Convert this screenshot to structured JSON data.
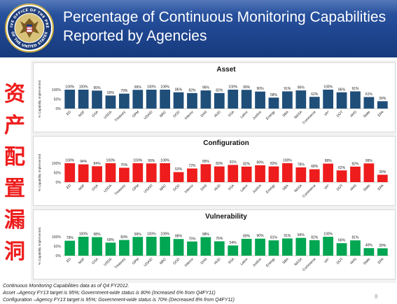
{
  "header": {
    "title_line1": "Percentage of Continuous Monitoring Capabilities",
    "title_line2": "Reported by Agencies",
    "seal_text_top": "EXECUTIVE OFFICE OF THE PRESIDENT",
    "seal_text_bottom": "OF THE UNITED STATES"
  },
  "sidebar": [
    "资",
    "产",
    "配",
    "置",
    "漏",
    "洞"
  ],
  "colors": {
    "header_blue": "#1f4690",
    "asset_bar": "#1f4e79",
    "configuration_bar": "#ee1c1c",
    "vulnerability_bar": "#00a651",
    "sidebar_red": "#ee1c1c"
  },
  "chart_data": [
    {
      "type": "bar",
      "title": "Asset",
      "ylabel": "% Capability Implemented",
      "yticks": [
        "100%",
        "50%",
        "0%"
      ],
      "ylim": [
        0,
        100
      ],
      "grid": false,
      "categories": [
        "ED",
        "NSF",
        "GSA",
        "USDA",
        "Treasury",
        "OPM",
        "USAID",
        "NRC",
        "DOD",
        "Interior",
        "DHS",
        "HUD",
        "SSA",
        "Labor",
        "Justice",
        "Energy",
        "SBA",
        "NASA",
        "Commerce",
        "VA*",
        "DOT",
        "HHS",
        "State",
        "EPA"
      ],
      "values": [
        100,
        100,
        95,
        69,
        79,
        99,
        100,
        100,
        86,
        82,
        96,
        82,
        100,
        99,
        90,
        58,
        91,
        96,
        62,
        100,
        86,
        91,
        61,
        39
      ],
      "labels": [
        "100%",
        "100%",
        "95%",
        "69%",
        "79%",
        "99%",
        "100%",
        "100%",
        "86%",
        "82%",
        "96%",
        "82%",
        "100%",
        "99%",
        "90%",
        "58%",
        "91%",
        "96%",
        "62%",
        "100%",
        "86%",
        "91%",
        "61%",
        "39%"
      ]
    },
    {
      "type": "bar",
      "title": "Configuration",
      "ylabel": "% Capability Implemented",
      "yticks": [
        "100%",
        "50%",
        "0%"
      ],
      "ylim": [
        0,
        100
      ],
      "grid": false,
      "categories": [
        "ED",
        "NSF",
        "GSA",
        "USDA",
        "Treasury",
        "OPM",
        "USAID",
        "NRC",
        "DOD",
        "Interior",
        "DHS",
        "HUD",
        "SSA",
        "Labor",
        "Justice",
        "Energy",
        "SBA",
        "NASA",
        "Commerce",
        "VA*",
        "DOT",
        "HHS",
        "State",
        "EPA"
      ],
      "values": [
        100,
        94,
        84,
        100,
        76,
        100,
        99,
        100,
        53,
        72,
        95,
        83,
        91,
        82,
        89,
        83,
        100,
        78,
        68,
        98,
        62,
        82,
        99,
        39
      ],
      "labels": [
        "100%",
        "94%",
        "84%",
        "100%",
        "76%",
        "100%",
        "99%",
        "100%",
        "53%",
        "72%",
        "95%",
        "83%",
        "91%",
        "82%",
        "89%",
        "83%",
        "100%",
        "78%",
        "68%",
        "98%",
        "62%",
        "82%",
        "99%",
        "39%"
      ]
    },
    {
      "type": "bar",
      "title": "Vulnerability",
      "ylabel": "% Capability Implemented",
      "yticks": [
        "100%",
        "50%",
        "0%"
      ],
      "ylim": [
        0,
        100
      ],
      "grid": false,
      "categories": [
        "ED",
        "NSF",
        "GSA",
        "USDA",
        "Treasury",
        "OPM",
        "USAID",
        "NRC",
        "DOD",
        "Interior",
        "DHS",
        "HUD",
        "SSA",
        "Labor",
        "Justice",
        "Energy",
        "SBA",
        "NASA",
        "Commerce",
        "VA*",
        "DOT",
        "HHS",
        "State",
        "EPA"
      ],
      "values": [
        79,
        100,
        98,
        69,
        83,
        99,
        100,
        100,
        88,
        75,
        98,
        76,
        54,
        89,
        90,
        81,
        91,
        94,
        82,
        100,
        66,
        81,
        40,
        39
      ],
      "labels": [
        "79%",
        "100%",
        "98%",
        "69%",
        "83%",
        "99%",
        "100%",
        "100%",
        "88%",
        "75%",
        "98%",
        "76%",
        "54%",
        "89%",
        "90%",
        "81%",
        "91%",
        "94%",
        "82%",
        "100%",
        "66%",
        "81%",
        "40%",
        "39%"
      ]
    }
  ],
  "footnote": {
    "line1": "Continuous Monitoring Capabilities data as of Q4 FY2012.",
    "line2": "Asset –Agency FY13 target is 95%; Government-wide status is 80% (Increased 6% from Q4FY11)",
    "line3": "Configuration –Agency FY13 target is 95%; Government-wide status is 70% (Decreased 8% from Q4FY11)"
  },
  "slide_number": "8"
}
